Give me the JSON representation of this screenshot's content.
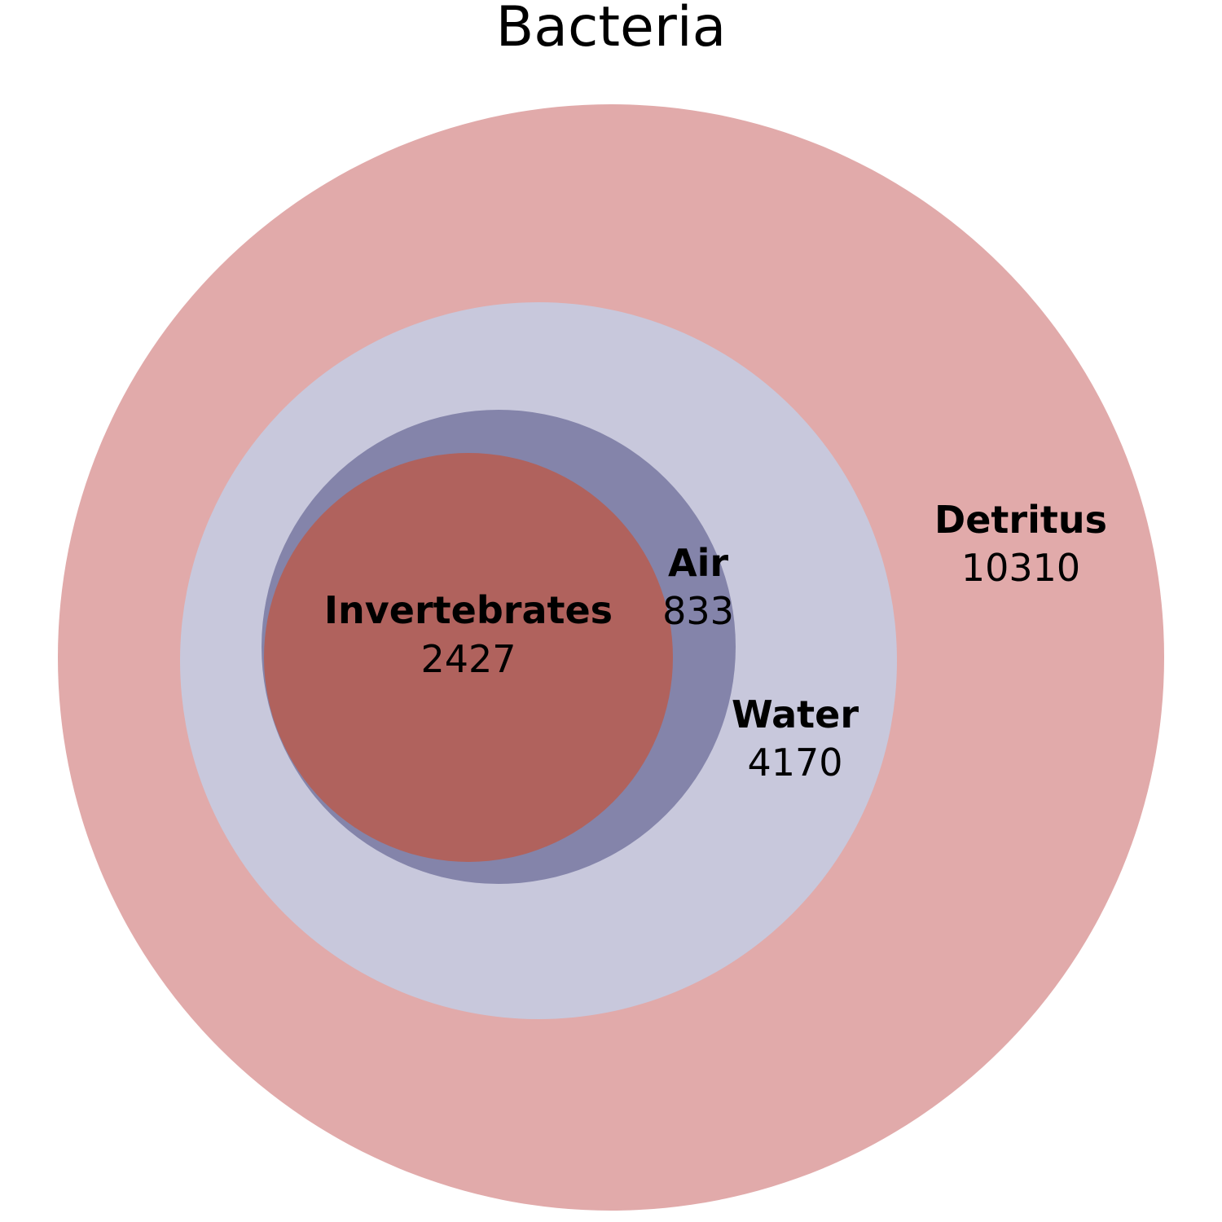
{
  "chart_data": {
    "type": "nested-circles",
    "title": "Bacteria",
    "sets": [
      {
        "name": "Detritus",
        "value": "10310",
        "color": "#e1aaaa"
      },
      {
        "name": "Water",
        "value": "4170",
        "color": "#c8c8dc"
      },
      {
        "name": "Air",
        "value": "833",
        "color": "#8484aa"
      },
      {
        "name": "Invertebrates",
        "value": "2427",
        "color": "#b0625d"
      }
    ]
  }
}
